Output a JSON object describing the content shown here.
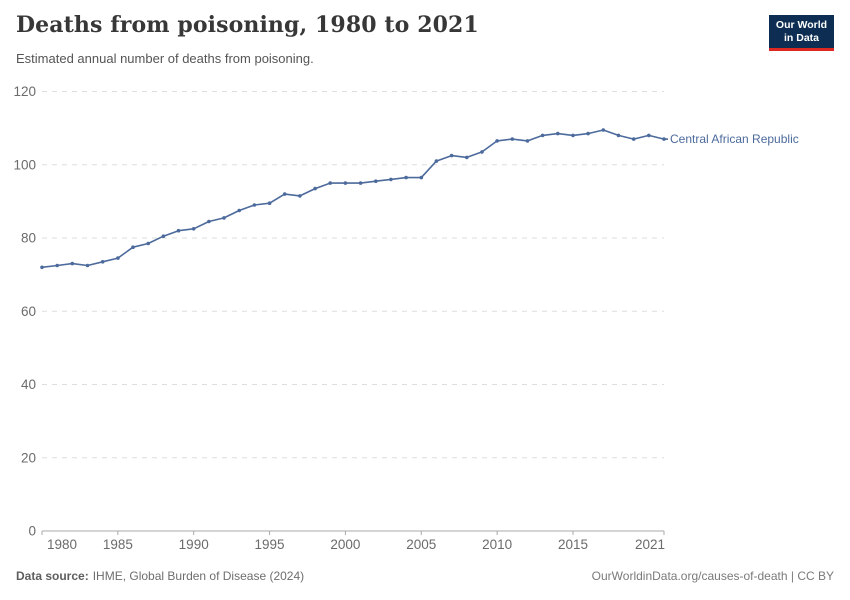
{
  "header": {
    "title": "Deaths from poisoning, 1980 to 2021",
    "subtitle": "Estimated annual number of deaths from poisoning.",
    "logo": {
      "line1": "Our World",
      "line2": "in Data"
    }
  },
  "colors": {
    "series_line": "#4c6a9c",
    "entity_label": "#4c6a9c",
    "gridline": "#dedede",
    "axis_line": "#a8a8a8",
    "tick_label": "#6b6b6b",
    "logo_bg": "#0d2e52",
    "logo_accent": "#dc2821"
  },
  "chart_data": {
    "type": "line",
    "title": "Deaths from poisoning, 1980 to 2021",
    "subtitle": "Estimated annual number of deaths from poisoning.",
    "xlabel": "",
    "ylabel": "",
    "xlim": [
      1980,
      2021
    ],
    "ylim": [
      0,
      120
    ],
    "x_ticks": [
      1980,
      1985,
      1990,
      1995,
      2000,
      2005,
      2010,
      2015,
      2021
    ],
    "y_ticks": [
      0,
      20,
      40,
      60,
      80,
      100,
      120
    ],
    "grid": "horizontal-dashed",
    "legend_position": "end-of-line-label",
    "series": [
      {
        "name": "Central African Republic",
        "color": "#4c6a9c",
        "x": [
          1980,
          1981,
          1982,
          1983,
          1984,
          1985,
          1986,
          1987,
          1988,
          1989,
          1990,
          1991,
          1992,
          1993,
          1994,
          1995,
          1996,
          1997,
          1998,
          1999,
          2000,
          2001,
          2002,
          2003,
          2004,
          2005,
          2006,
          2007,
          2008,
          2009,
          2010,
          2011,
          2012,
          2013,
          2014,
          2015,
          2016,
          2017,
          2018,
          2019,
          2020,
          2021
        ],
        "values": [
          72,
          72.5,
          73,
          72.5,
          73.5,
          74.5,
          77.5,
          78.5,
          80.5,
          82,
          82.5,
          84.5,
          85.5,
          87.5,
          89,
          89.5,
          92,
          91.5,
          93.5,
          95,
          95,
          95,
          95.5,
          96,
          96.5,
          96.5,
          101,
          102.5,
          102,
          103.5,
          106.5,
          107,
          106.5,
          108,
          108.5,
          108,
          108.5,
          109.5,
          108,
          107,
          108,
          107
        ]
      }
    ]
  },
  "footer": {
    "source_label": "Data source:",
    "source_text": "IHME, Global Burden of Disease (2024)",
    "license": "OurWorldinData.org/causes-of-death | CC BY"
  }
}
